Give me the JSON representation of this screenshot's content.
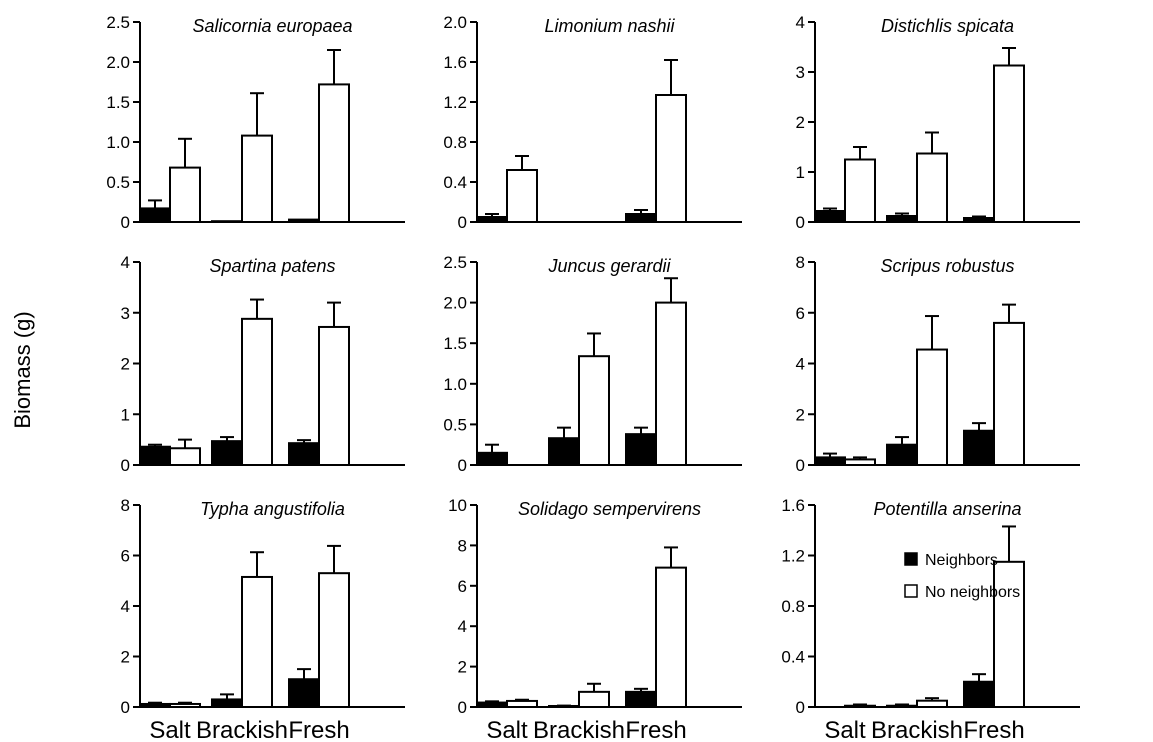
{
  "figure": {
    "ylabel": "Biomass (g)",
    "legend": [
      {
        "name": "Neighbors",
        "fill": "#000000"
      },
      {
        "name": "No neighbors",
        "fill": "#ffffff"
      }
    ],
    "xcategories": [
      "Salt",
      "Brackish",
      "Fresh"
    ]
  },
  "chart_data": [
    {
      "type": "bar",
      "title": "Salicornia europaea",
      "categories": [
        "Salt",
        "Brackish",
        "Fresh"
      ],
      "ylim": [
        0,
        2.5
      ],
      "yticks": [
        0,
        0.5,
        1.0,
        1.5,
        2.0,
        2.5
      ],
      "ytick_labels": [
        "0",
        "0.5",
        "1.0",
        "1.5",
        "2.0",
        "2.5"
      ],
      "series": [
        {
          "name": "Neighbors",
          "values": [
            0.17,
            0.01,
            0.03
          ],
          "errors": [
            0.1,
            0.0,
            0.0
          ]
        },
        {
          "name": "No neighbors",
          "values": [
            0.68,
            1.08,
            1.72
          ],
          "errors": [
            0.36,
            0.53,
            0.43
          ]
        }
      ]
    },
    {
      "type": "bar",
      "title": "Limonium nashii",
      "categories": [
        "Salt",
        "Brackish",
        "Fresh"
      ],
      "ylim": [
        0,
        2.0
      ],
      "yticks": [
        0,
        0.4,
        0.8,
        1.2,
        1.6,
        2.0
      ],
      "ytick_labels": [
        "0",
        "0.4",
        "0.8",
        "1.2",
        "1.6",
        "2.0"
      ],
      "series": [
        {
          "name": "Neighbors",
          "values": [
            0.05,
            0,
            0.08
          ],
          "errors": [
            0.03,
            0,
            0.04
          ]
        },
        {
          "name": "No neighbors",
          "values": [
            0.52,
            0,
            1.27
          ],
          "errors": [
            0.14,
            0,
            0.35
          ]
        }
      ]
    },
    {
      "type": "bar",
      "title": "Distichlis spicata",
      "categories": [
        "Salt",
        "Brackish",
        "Fresh"
      ],
      "ylim": [
        0,
        4
      ],
      "yticks": [
        0,
        1,
        2,
        3,
        4
      ],
      "ytick_labels": [
        "0",
        "1",
        "2",
        "3",
        "4"
      ],
      "series": [
        {
          "name": "Neighbors",
          "values": [
            0.22,
            0.12,
            0.08
          ],
          "errors": [
            0.05,
            0.05,
            0.03
          ]
        },
        {
          "name": "No neighbors",
          "values": [
            1.25,
            1.37,
            3.13
          ],
          "errors": [
            0.25,
            0.42,
            0.35
          ]
        }
      ]
    },
    {
      "type": "bar",
      "title": "Spartina patens",
      "categories": [
        "Salt",
        "Brackish",
        "Fresh"
      ],
      "ylim": [
        0,
        4
      ],
      "yticks": [
        0,
        1,
        2,
        3,
        4
      ],
      "ytick_labels": [
        "0",
        "1",
        "2",
        "3",
        "4"
      ],
      "series": [
        {
          "name": "Neighbors",
          "values": [
            0.36,
            0.47,
            0.43
          ],
          "errors": [
            0.04,
            0.08,
            0.06
          ]
        },
        {
          "name": "No neighbors",
          "values": [
            0.33,
            2.88,
            2.72
          ],
          "errors": [
            0.17,
            0.38,
            0.48
          ]
        }
      ]
    },
    {
      "type": "bar",
      "title": "Juncus gerardii",
      "categories": [
        "Salt",
        "Brackish",
        "Fresh"
      ],
      "ylim": [
        0,
        2.5
      ],
      "yticks": [
        0,
        0.5,
        1.0,
        1.5,
        2.0,
        2.5
      ],
      "ytick_labels": [
        "0",
        "0.5",
        "1.0",
        "1.5",
        "2.0",
        "2.5"
      ],
      "series": [
        {
          "name": "Neighbors",
          "values": [
            0.15,
            0.33,
            0.38
          ],
          "errors": [
            0.1,
            0.13,
            0.08
          ]
        },
        {
          "name": "No neighbors",
          "values": [
            0,
            1.34,
            2.0
          ],
          "errors": [
            0,
            0.28,
            0.3
          ]
        }
      ]
    },
    {
      "type": "bar",
      "title": "Scripus robustus",
      "categories": [
        "Salt",
        "Brackish",
        "Fresh"
      ],
      "ylim": [
        0,
        8
      ],
      "yticks": [
        0,
        2,
        4,
        6,
        8
      ],
      "ytick_labels": [
        "0",
        "2",
        "4",
        "6",
        "8"
      ],
      "series": [
        {
          "name": "Neighbors",
          "values": [
            0.3,
            0.8,
            1.35
          ],
          "errors": [
            0.15,
            0.3,
            0.3
          ]
        },
        {
          "name": "No neighbors",
          "values": [
            0.22,
            4.55,
            5.6
          ],
          "errors": [
            0.08,
            1.32,
            0.72
          ]
        }
      ]
    },
    {
      "type": "bar",
      "title": "Typha angustifolia",
      "categories": [
        "Salt",
        "Brackish",
        "Fresh"
      ],
      "ylim": [
        0,
        8
      ],
      "yticks": [
        0,
        2,
        4,
        6,
        8
      ],
      "ytick_labels": [
        "0",
        "2",
        "4",
        "6",
        "8"
      ],
      "series": [
        {
          "name": "Neighbors",
          "values": [
            0.12,
            0.3,
            1.1
          ],
          "errors": [
            0.05,
            0.2,
            0.4
          ]
        },
        {
          "name": "No neighbors",
          "values": [
            0.12,
            5.15,
            5.3
          ],
          "errors": [
            0.05,
            0.98,
            1.08
          ]
        }
      ]
    },
    {
      "type": "bar",
      "title": "Solidago sempervirens",
      "categories": [
        "Salt",
        "Brackish",
        "Fresh"
      ],
      "ylim": [
        0,
        10
      ],
      "yticks": [
        0,
        2,
        4,
        6,
        8,
        10
      ],
      "ytick_labels": [
        "0",
        "2",
        "4",
        "6",
        "8",
        "10"
      ],
      "series": [
        {
          "name": "Neighbors",
          "values": [
            0.22,
            0.05,
            0.75
          ],
          "errors": [
            0.06,
            0.02,
            0.15
          ]
        },
        {
          "name": "No neighbors",
          "values": [
            0.3,
            0.75,
            6.9
          ],
          "errors": [
            0.06,
            0.4,
            1.0
          ]
        }
      ]
    },
    {
      "type": "bar",
      "title": "Potentilla anserina",
      "categories": [
        "Salt",
        "Brackish",
        "Fresh"
      ],
      "ylim": [
        0,
        1.6
      ],
      "yticks": [
        0,
        0.4,
        0.8,
        1.2,
        1.6
      ],
      "ytick_labels": [
        "0",
        "0.4",
        "0.8",
        "1.2",
        "1.6"
      ],
      "series": [
        {
          "name": "Neighbors",
          "values": [
            0,
            0.01,
            0.2
          ],
          "errors": [
            0,
            0.01,
            0.06
          ]
        },
        {
          "name": "No neighbors",
          "values": [
            0.01,
            0.05,
            1.15
          ],
          "errors": [
            0.01,
            0.02,
            0.28
          ]
        }
      ]
    }
  ]
}
